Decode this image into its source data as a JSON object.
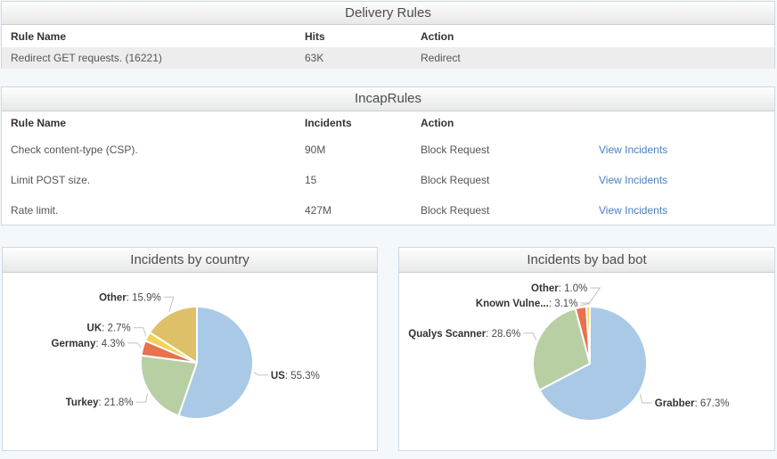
{
  "colors": {
    "link": "#4a7fbf",
    "row_stripe": "#ededed",
    "panel_border": "#ccd9e4",
    "header_text": "#4c4c4c",
    "page_background": "#f4f8fb"
  },
  "delivery_rules": {
    "title": "Delivery Rules",
    "columns": [
      "Rule Name",
      "Hits",
      "Action"
    ],
    "rows": [
      {
        "name": "Redirect GET requests. (16221)",
        "hits": "63K",
        "action": "Redirect"
      }
    ]
  },
  "incap_rules": {
    "title": "IncapRules",
    "columns": [
      "Rule Name",
      "Incidents",
      "Action"
    ],
    "link_label": "View Incidents",
    "rows": [
      {
        "name": "Check content-type (CSP).",
        "incidents": "90M",
        "action": "Block Request"
      },
      {
        "name": "Limit POST size.",
        "incidents": "15",
        "action": "Block Request"
      },
      {
        "name": "Rate limit.",
        "incidents": "427M",
        "action": "Block Request"
      }
    ]
  },
  "chart_data": [
    {
      "type": "pie",
      "title": "Incidents by country",
      "labels": [
        "US",
        "Turkey",
        "Germany",
        "UK",
        "Other"
      ],
      "values": [
        55.3,
        21.8,
        4.3,
        2.7,
        15.9
      ],
      "colors": [
        "#a9c9e6",
        "#b8cfa3",
        "#e8714e",
        "#f2d355",
        "#ddc068"
      ],
      "legend": "none",
      "label_format": "name: value%",
      "start_angle_deg": 0,
      "direction": "clockwise"
    },
    {
      "type": "pie",
      "title": "Incidents by bad bot",
      "labels": [
        "Grabber",
        "Qualys Scanner",
        "Known Vulne...",
        "Other"
      ],
      "values": [
        67.3,
        28.6,
        3.1,
        1.0
      ],
      "colors": [
        "#a9c9e6",
        "#b8cfa3",
        "#e8714e",
        "#f2d355"
      ],
      "legend": "none",
      "label_format": "name: value%",
      "start_angle_deg": 0,
      "direction": "clockwise"
    }
  ]
}
